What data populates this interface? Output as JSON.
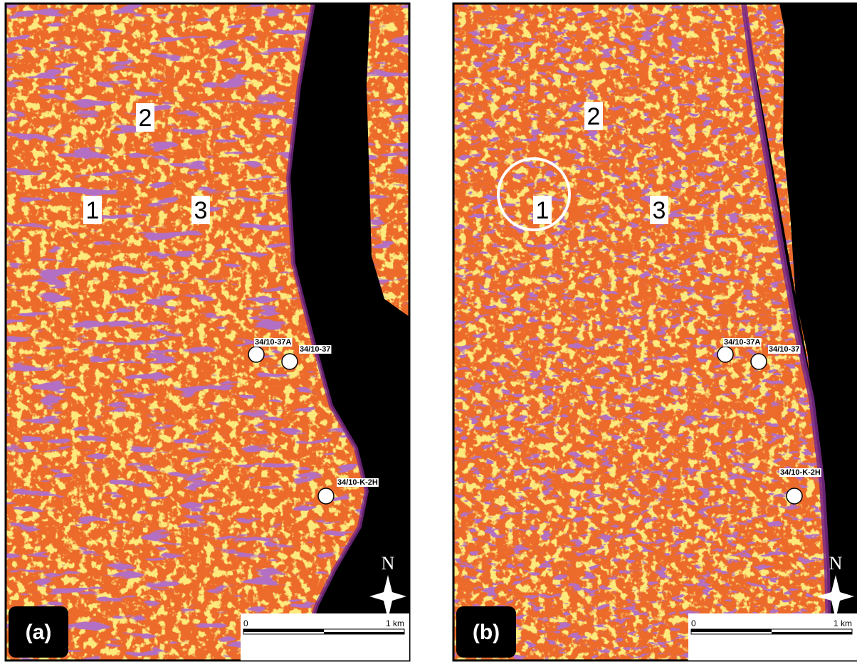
{
  "panels": [
    {
      "label": "(a)",
      "zones": [
        "1",
        "2",
        "3"
      ],
      "wells": [
        "34/10-37A",
        "34/10-37",
        "34/10-K-2H"
      ],
      "scale": {
        "start": "0",
        "end": "1 km"
      },
      "north": "N"
    },
    {
      "label": "(b)",
      "zones": [
        "1",
        "2",
        "3"
      ],
      "wells": [
        "34/10-37A",
        "34/10-37",
        "34/10-K-2H"
      ],
      "scale": {
        "start": "0",
        "end": "1 km"
      },
      "north": "N"
    }
  ]
}
